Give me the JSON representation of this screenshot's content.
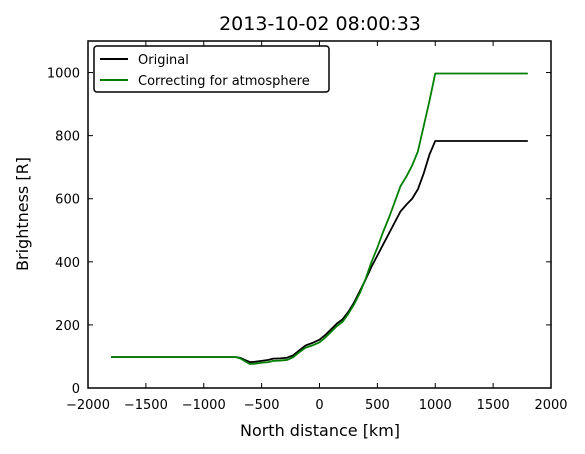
{
  "chart_data": {
    "type": "line",
    "title": "2013-10-02 08:00:33",
    "xlabel": "North distance [km]",
    "ylabel": "Brightness [R]",
    "xlim": [
      -2000,
      2000
    ],
    "ylim": [
      0,
      1100
    ],
    "xticks": [
      -2000,
      -1500,
      -1000,
      -500,
      0,
      500,
      1000,
      1500,
      2000
    ],
    "xtick_labels": [
      "−2000",
      "−1500",
      "−1000",
      "−500",
      "0",
      "500",
      "1000",
      "1500",
      "2000"
    ],
    "yticks": [
      0,
      200,
      400,
      600,
      800,
      1000
    ],
    "ytick_labels": [
      "0",
      "200",
      "400",
      "600",
      "800",
      "1000"
    ],
    "grid": false,
    "legend_position": "top-left",
    "series": [
      {
        "name": "Original",
        "color": "#000000",
        "points": [
          [
            -1800,
            98
          ],
          [
            -1500,
            98
          ],
          [
            -1200,
            98
          ],
          [
            -900,
            98
          ],
          [
            -720,
            98
          ],
          [
            -680,
            95
          ],
          [
            -640,
            88
          ],
          [
            -600,
            82
          ],
          [
            -560,
            83
          ],
          [
            -500,
            86
          ],
          [
            -440,
            89
          ],
          [
            -400,
            93
          ],
          [
            -340,
            94
          ],
          [
            -280,
            96
          ],
          [
            -230,
            103
          ],
          [
            -180,
            118
          ],
          [
            -120,
            135
          ],
          [
            -60,
            143
          ],
          [
            0,
            153
          ],
          [
            50,
            168
          ],
          [
            100,
            186
          ],
          [
            150,
            204
          ],
          [
            200,
            218
          ],
          [
            250,
            242
          ],
          [
            300,
            272
          ],
          [
            350,
            308
          ],
          [
            400,
            345
          ],
          [
            450,
            385
          ],
          [
            500,
            420
          ],
          [
            550,
            455
          ],
          [
            600,
            490
          ],
          [
            650,
            525
          ],
          [
            700,
            560
          ],
          [
            760,
            585
          ],
          [
            800,
            600
          ],
          [
            850,
            630
          ],
          [
            900,
            680
          ],
          [
            950,
            740
          ],
          [
            1000,
            783
          ],
          [
            1200,
            783
          ],
          [
            1400,
            783
          ],
          [
            1600,
            783
          ],
          [
            1800,
            783
          ]
        ]
      },
      {
        "name": "Correcting for atmosphere",
        "color": "#008000",
        "points": [
          [
            -1800,
            98
          ],
          [
            -1500,
            98
          ],
          [
            -1200,
            98
          ],
          [
            -900,
            98
          ],
          [
            -720,
            98
          ],
          [
            -680,
            93
          ],
          [
            -640,
            84
          ],
          [
            -600,
            76
          ],
          [
            -560,
            77
          ],
          [
            -500,
            80
          ],
          [
            -440,
            82
          ],
          [
            -400,
            86
          ],
          [
            -340,
            87
          ],
          [
            -280,
            89
          ],
          [
            -230,
            97
          ],
          [
            -180,
            112
          ],
          [
            -120,
            128
          ],
          [
            -60,
            135
          ],
          [
            0,
            145
          ],
          [
            50,
            160
          ],
          [
            100,
            178
          ],
          [
            150,
            196
          ],
          [
            200,
            210
          ],
          [
            250,
            236
          ],
          [
            300,
            266
          ],
          [
            350,
            302
          ],
          [
            400,
            348
          ],
          [
            450,
            400
          ],
          [
            500,
            445
          ],
          [
            550,
            495
          ],
          [
            600,
            540
          ],
          [
            650,
            590
          ],
          [
            700,
            640
          ],
          [
            750,
            670
          ],
          [
            800,
            705
          ],
          [
            850,
            750
          ],
          [
            900,
            830
          ],
          [
            950,
            910
          ],
          [
            1000,
            997
          ],
          [
            1200,
            997
          ],
          [
            1400,
            997
          ],
          [
            1600,
            997
          ],
          [
            1800,
            997
          ]
        ]
      }
    ]
  }
}
